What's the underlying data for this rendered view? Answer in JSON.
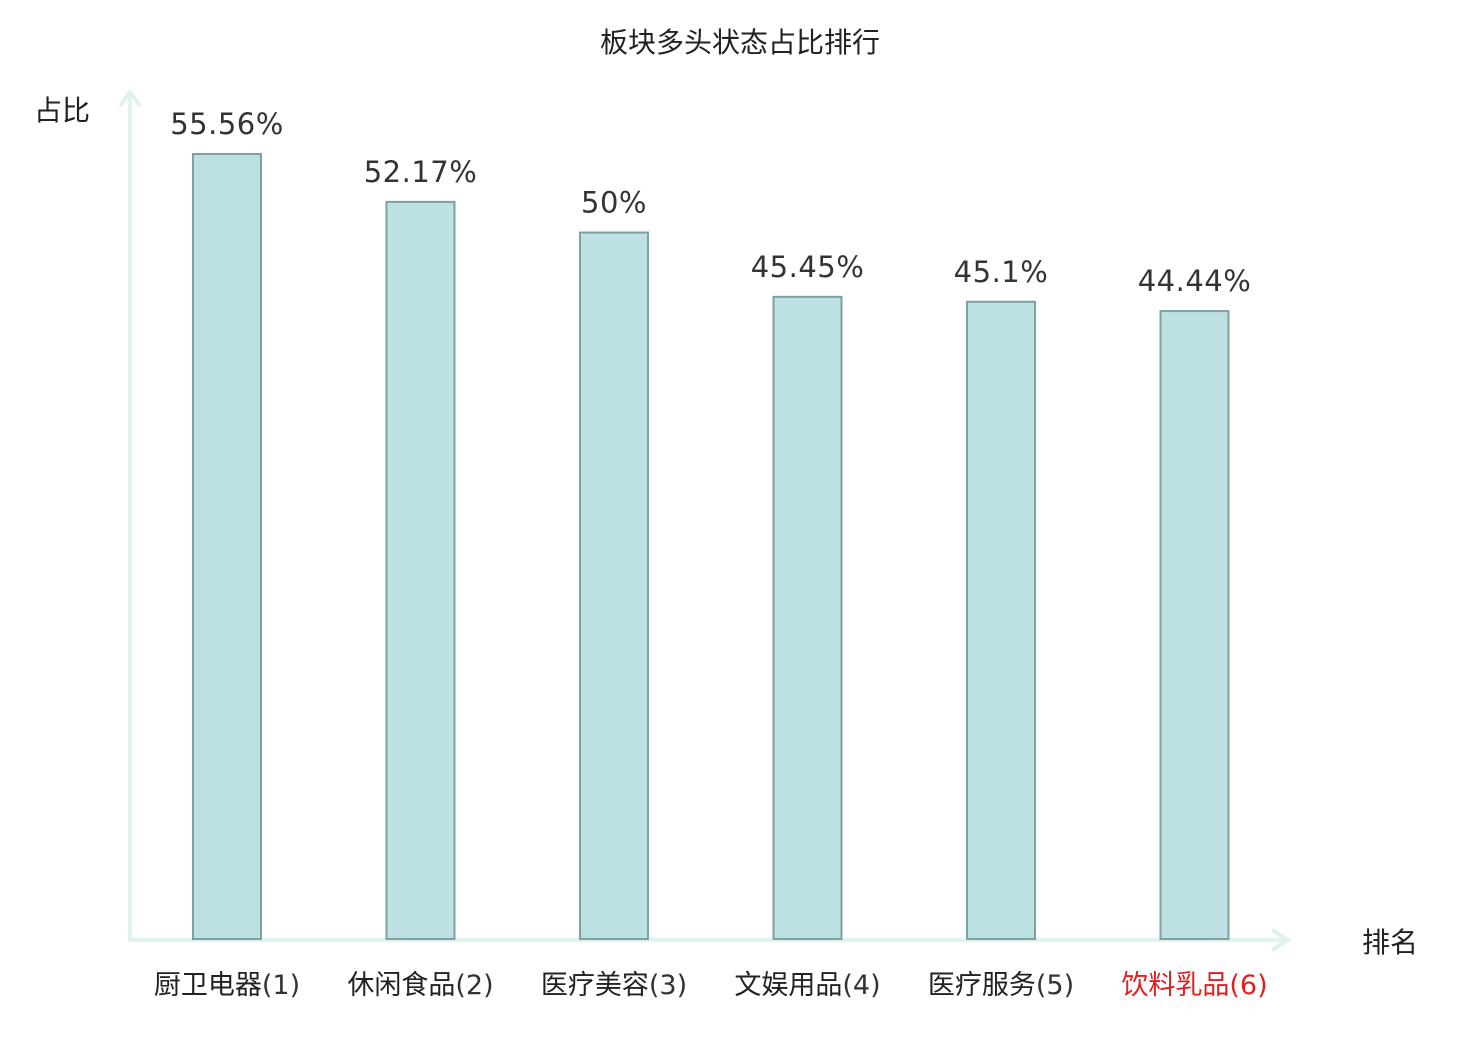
{
  "chart_data": {
    "type": "bar",
    "title": "板块多头状态占比排行",
    "ylabel": "占比",
    "xlabel": "排名",
    "ylim": [
      0,
      55.56
    ],
    "grid": false,
    "categories": [
      {
        "name": "厨卫电器",
        "rank": "(1)"
      },
      {
        "name": "休闲食品",
        "rank": "(2)"
      },
      {
        "name": "医疗美容",
        "rank": "(3)"
      },
      {
        "name": "文娱用品",
        "rank": "(4)"
      },
      {
        "name": "医疗服务",
        "rank": "(5)"
      },
      {
        "name": "饮料乳品",
        "rank": "(6)"
      }
    ],
    "values": [
      55.56,
      52.17,
      50,
      45.45,
      45.1,
      44.44
    ],
    "value_labels": [
      "55.56%",
      "52.17%",
      "50%",
      "45.45%",
      "45.1%",
      "44.44%"
    ],
    "highlight_index": 5
  },
  "colors": {
    "bar_fill": "#bde0e3",
    "bar_stroke": "#7f9fa2",
    "axis": "#dff2ee",
    "text": "#222222",
    "highlight": "#e02020"
  }
}
